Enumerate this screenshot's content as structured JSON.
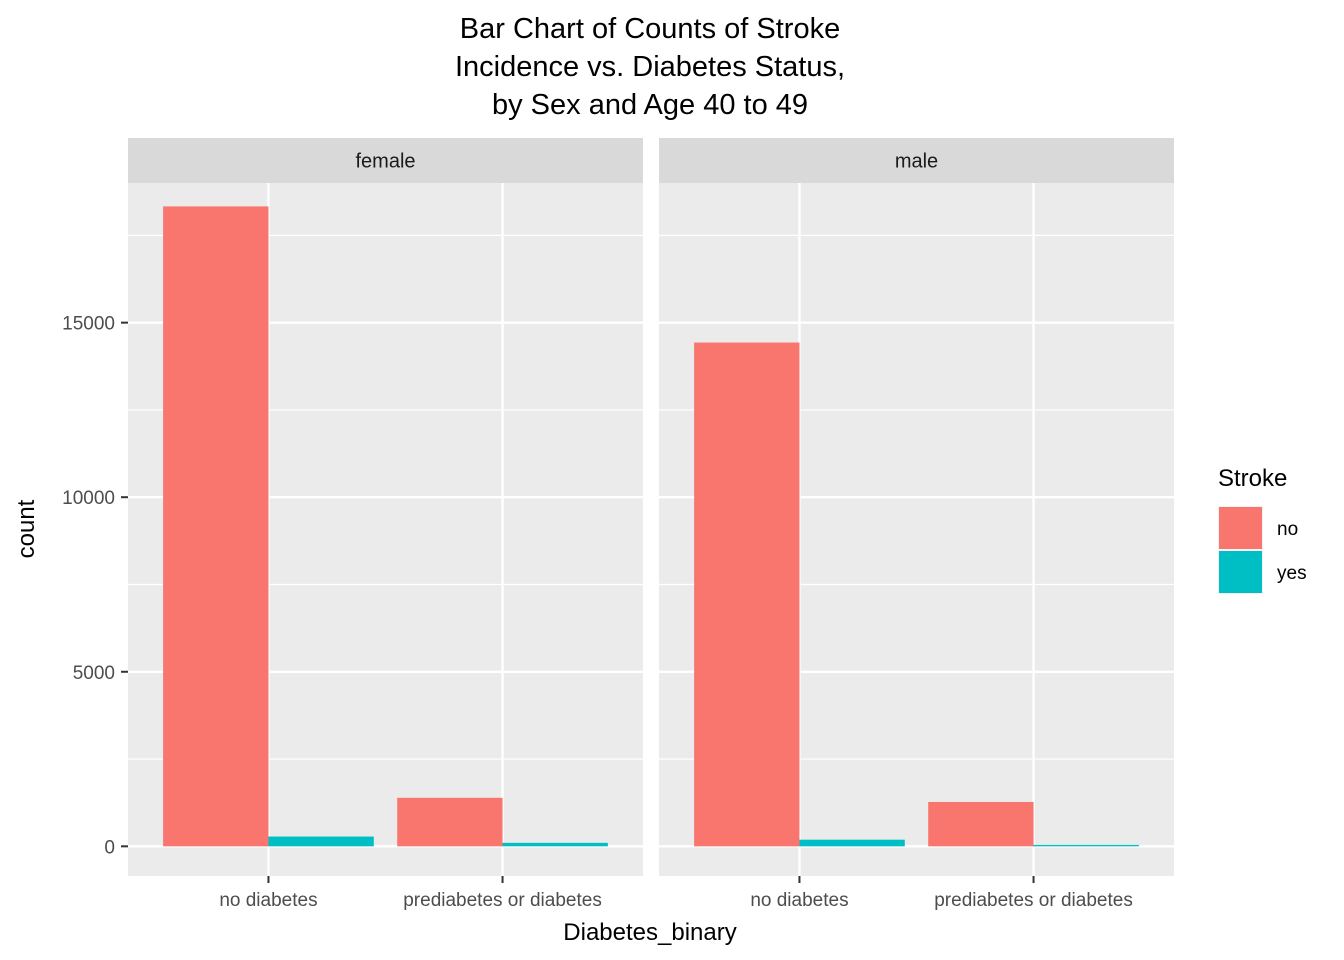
{
  "chart_data": {
    "type": "bar",
    "title_lines": [
      "Bar Chart of Counts of Stroke",
      "Incidence vs. Diabetes Status,",
      "by Sex and Age 40 to 49"
    ],
    "xlabel": "Diabetes_binary",
    "ylabel": "count",
    "categories": [
      "no diabetes",
      "prediabetes or diabetes"
    ],
    "y_ticks": [
      0,
      5000,
      10000,
      15000
    ],
    "y_tick_labels": [
      "0",
      "5000",
      "10000",
      "15000"
    ],
    "ylim": [
      -850,
      19000
    ],
    "grid": true,
    "legend": {
      "title": "Stroke",
      "placement": "right",
      "entries": [
        {
          "label": "no",
          "color": "#F8766D"
        },
        {
          "label": "yes",
          "color": "#00BFC4"
        }
      ]
    },
    "facets": [
      {
        "label": "female",
        "series": [
          {
            "name": "no",
            "values": [
              18330,
              1390
            ]
          },
          {
            "name": "yes",
            "values": [
              280,
              100
            ]
          }
        ]
      },
      {
        "label": "male",
        "series": [
          {
            "name": "no",
            "values": [
              14430,
              1270
            ]
          },
          {
            "name": "yes",
            "values": [
              190,
              40
            ]
          }
        ]
      }
    ]
  }
}
